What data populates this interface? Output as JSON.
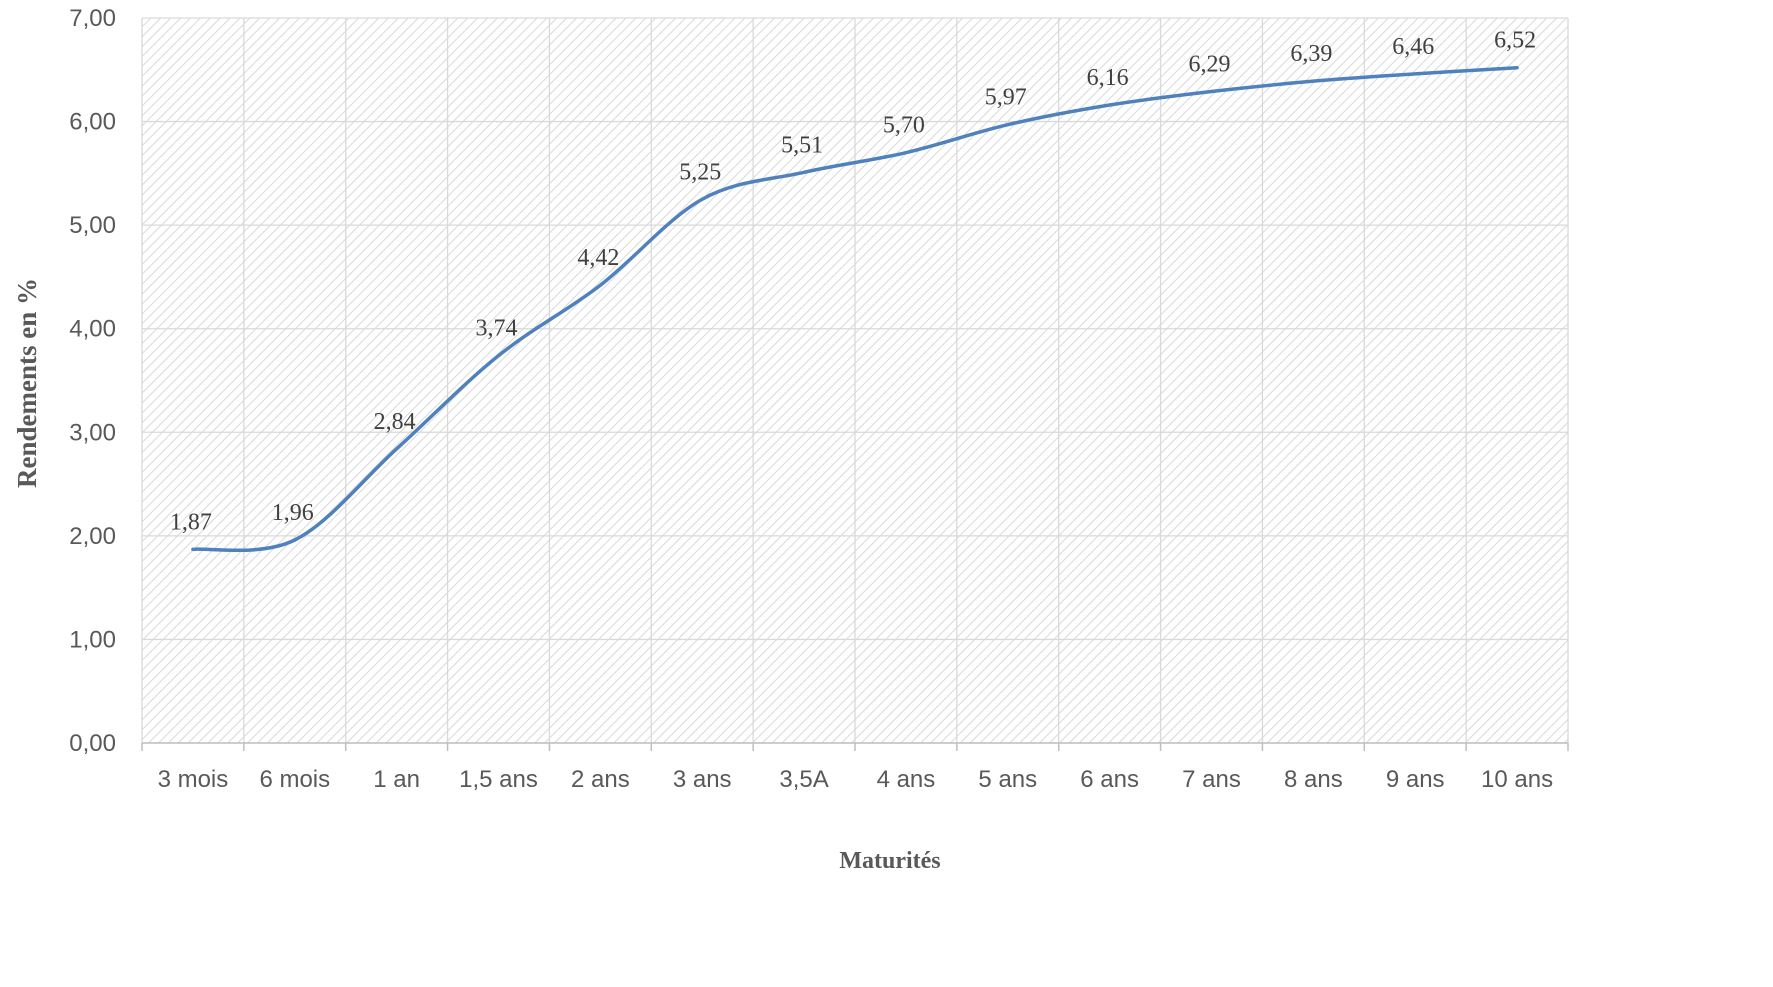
{
  "chart_data": {
    "type": "line",
    "categories": [
      "3 mois",
      "6 mois",
      "1 an",
      "1,5 ans",
      "2 ans",
      "3 ans",
      "3,5A",
      "4 ans",
      "5 ans",
      "6 ans",
      "7 ans",
      "8 ans",
      "9 ans",
      "10 ans"
    ],
    "series": [
      {
        "values": [
          1.87,
          1.96,
          2.84,
          3.74,
          4.42,
          5.25,
          5.51,
          5.7,
          5.97,
          6.16,
          6.29,
          6.39,
          6.46,
          6.52
        ],
        "data_labels": [
          "1,87",
          "1,96",
          "2,84",
          "3,74",
          "4,42",
          "5,25",
          "5,51",
          "5,70",
          "5,97",
          "6,16",
          "6,29",
          "6,39",
          "6,46",
          "6,52"
        ],
        "color": "#4f81bd",
        "smooth": true
      }
    ],
    "xlabel": "Maturités",
    "ylabel": "Rendements en %",
    "ylim": [
      0,
      7
    ],
    "yticks": [
      "0,00",
      "1,00",
      "2,00",
      "3,00",
      "4,00",
      "5,00",
      "6,00",
      "7,00"
    ],
    "grid": true,
    "plot_area_pattern": "diagonal hatch",
    "colors": {
      "grid": "#d9d9d9",
      "hatch": "#d0d0d0",
      "axis": "#bfbfbf",
      "tick_text": "#595959"
    }
  }
}
